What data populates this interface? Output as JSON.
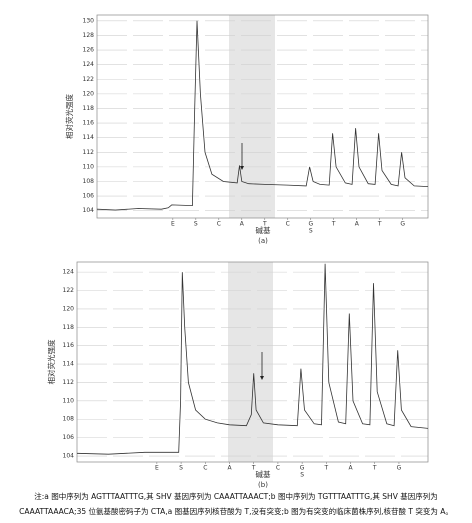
{
  "chart_data": [
    {
      "type": "line",
      "y_label": "相对荧光强度",
      "x_label": "碱基",
      "subcaption": "(a)",
      "color": "#333333",
      "grid": true,
      "xlim": [
        -2.3,
        12.1
      ],
      "ylim": [
        103,
        130.8
      ],
      "yticks": [
        104,
        106,
        108,
        110,
        112,
        114,
        116,
        118,
        120,
        122,
        124,
        126,
        128,
        130
      ],
      "xticks": [
        {
          "value": 1,
          "label": "E"
        },
        {
          "value": 2,
          "label": "S"
        },
        {
          "value": 3,
          "label": "C"
        },
        {
          "value": 4,
          "label": "A"
        },
        {
          "value": 5,
          "label": "T"
        },
        {
          "value": 6,
          "label": "C"
        },
        {
          "value": 7,
          "label": "G"
        },
        {
          "value": 8,
          "label": "T"
        },
        {
          "value": 9,
          "label": "A"
        },
        {
          "value": 10,
          "label": "T"
        },
        {
          "value": 11,
          "label": "G"
        }
      ],
      "annotations": [
        {
          "x": 7,
          "text": "S"
        }
      ],
      "x": [
        -2.3,
        -1.5,
        -0.5,
        0.5,
        0.8,
        0.95,
        1.85,
        1.95,
        2.05,
        2.2,
        2.4,
        2.7,
        3.2,
        3.8,
        3.9,
        4.0,
        4.3,
        5,
        6,
        6.8,
        6.95,
        7.1,
        7.4,
        7.8,
        7.95,
        8.1,
        8.5,
        8.8,
        8.95,
        9.1,
        9.5,
        9.8,
        9.95,
        10.1,
        10.5,
        10.8,
        10.95,
        11.1,
        11.5,
        12.1
      ],
      "values": [
        104.2,
        104.1,
        104.3,
        104.2,
        104.4,
        104.8,
        104.7,
        118,
        130,
        120,
        112,
        109,
        108,
        107.8,
        110.2,
        108,
        107.7,
        107.6,
        107.5,
        107.4,
        110,
        108,
        107.6,
        107.5,
        114.6,
        110,
        107.8,
        107.6,
        115.3,
        110,
        107.7,
        107.6,
        114.6,
        109.5,
        107.6,
        107.4,
        112,
        108.5,
        107.4,
        107.3
      ]
    },
    {
      "type": "line",
      "y_label": "相对荧光强度",
      "x_label": "碱基",
      "subcaption": "(b)",
      "color": "#333333",
      "grid": true,
      "xlim": [
        -2.3,
        12.2
      ],
      "ylim": [
        103.35,
        125.1
      ],
      "yticks": [
        104,
        106,
        108,
        110,
        112,
        114,
        116,
        118,
        120,
        122,
        124
      ],
      "xticks": [
        {
          "value": 1,
          "label": "E"
        },
        {
          "value": 2,
          "label": "S"
        },
        {
          "value": 3,
          "label": "C"
        },
        {
          "value": 4,
          "label": "A"
        },
        {
          "value": 5,
          "label": "T"
        },
        {
          "value": 6,
          "label": "C"
        },
        {
          "value": 7,
          "label": "G"
        },
        {
          "value": 8,
          "label": "T"
        },
        {
          "value": 9,
          "label": "A"
        },
        {
          "value": 10,
          "label": "T"
        },
        {
          "value": 11,
          "label": "G"
        }
      ],
      "annotations": [
        {
          "x": 7,
          "text": "S"
        }
      ],
      "x": [
        -2.3,
        -1,
        0.5,
        1.9,
        1.98,
        2.05,
        2.15,
        2.3,
        2.6,
        3,
        3.5,
        4,
        4.7,
        4.9,
        5,
        5.1,
        5.4,
        6,
        6.8,
        6.95,
        7.1,
        7.5,
        7.8,
        7.95,
        8.1,
        8.5,
        8.8,
        8.95,
        9.1,
        9.5,
        9.8,
        9.95,
        10.1,
        10.5,
        10.8,
        10.95,
        11.1,
        11.5,
        12.2
      ],
      "values": [
        104.3,
        104.2,
        104.4,
        104.4,
        110,
        124,
        118,
        112,
        109,
        108,
        107.6,
        107.4,
        107.3,
        108.5,
        113,
        109,
        107.6,
        107.4,
        107.3,
        113.5,
        109,
        107.5,
        107.4,
        124.9,
        112,
        107.7,
        107.5,
        119.5,
        110,
        107.5,
        107.4,
        122.8,
        111,
        107.5,
        107.3,
        115.5,
        109,
        107.2,
        107
      ]
    }
  ],
  "caption": [
    "注:a 图中序列为 AGTTTAATTTG,其 SHV 基因序列为 CAAATTAAACT;b 图中序列为 TGTTTAATTTG,其 SHV 基因序列为",
    "CAAATTAAACA;35 位氨基酸密码子为 CTA,a 图基因序列核苷酸为 T,没有突变;b 图为有突变的临床菌株序列,核苷酸 T 突变为 A。"
  ]
}
